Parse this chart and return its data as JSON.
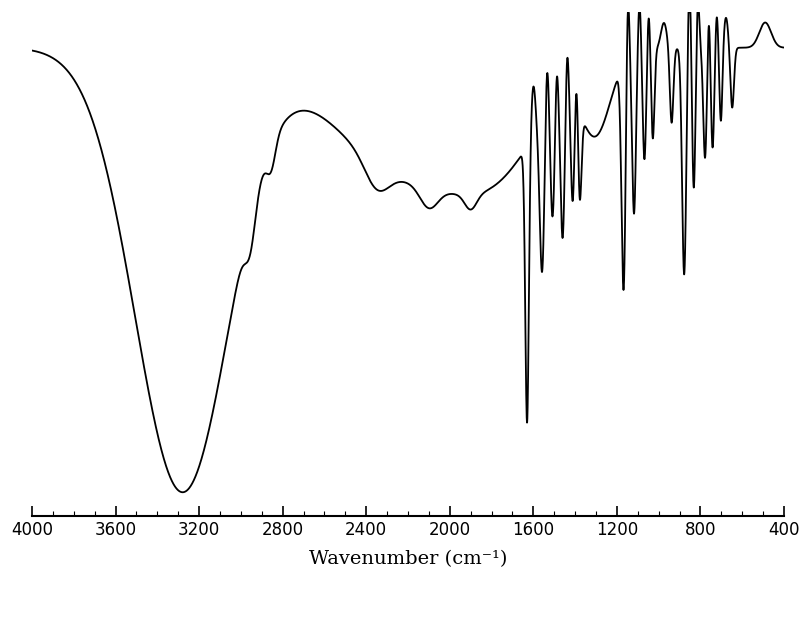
{
  "xlabel": "Wavenumber (cm⁻¹)",
  "xlim": [
    4000,
    400
  ],
  "ylim": [
    0.0,
    1.0
  ],
  "xticks": [
    4000,
    3600,
    3200,
    2800,
    2400,
    2000,
    1600,
    1200,
    800,
    400
  ],
  "background_color": "#ffffff",
  "line_color": "#000000",
  "line_width": 1.3,
  "xlabel_fontsize": 14,
  "xtick_fontsize": 12
}
